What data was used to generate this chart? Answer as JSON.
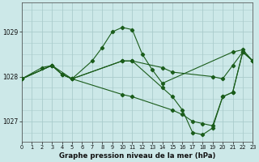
{
  "title": "Graphe pression niveau de la mer (hPa)",
  "bg_color": "#cce8e8",
  "grid_color": "#aacccc",
  "line_color": "#1a5c1a",
  "xlim": [
    0,
    23
  ],
  "ylim": [
    1026.55,
    1029.65
  ],
  "yticks": [
    1027,
    1028,
    1029
  ],
  "xticks": [
    0,
    1,
    2,
    3,
    4,
    5,
    6,
    7,
    8,
    9,
    10,
    11,
    12,
    13,
    14,
    15,
    16,
    17,
    18,
    19,
    20,
    21,
    22,
    23
  ],
  "series": [
    {
      "x": [
        0,
        2,
        3,
        5,
        7,
        8,
        9,
        10,
        11,
        12,
        13,
        14,
        21,
        22,
        23
      ],
      "y": [
        1027.95,
        1028.2,
        1028.25,
        1027.95,
        1028.35,
        1028.65,
        1029.0,
        1029.1,
        1029.05,
        1028.5,
        1028.15,
        1027.85,
        1028.55,
        1028.6,
        1028.35
      ]
    },
    {
      "x": [
        0,
        3,
        4,
        5,
        10,
        11,
        14,
        15,
        19,
        20,
        21,
        22,
        23
      ],
      "y": [
        1027.95,
        1028.25,
        1028.05,
        1027.95,
        1028.35,
        1028.35,
        1028.2,
        1028.1,
        1028.0,
        1027.95,
        1028.25,
        1028.55,
        1028.35
      ]
    },
    {
      "x": [
        0,
        3,
        4,
        5,
        10,
        11,
        14,
        15,
        16,
        17,
        18,
        19,
        20,
        21,
        22,
        23
      ],
      "y": [
        1027.95,
        1028.25,
        1028.05,
        1027.95,
        1028.35,
        1028.35,
        1027.75,
        1027.55,
        1027.25,
        1026.75,
        1026.7,
        1026.85,
        1027.55,
        1027.65,
        1028.55,
        1028.35
      ]
    },
    {
      "x": [
        0,
        3,
        4,
        5,
        10,
        11,
        15,
        16,
        17,
        18,
        19,
        20,
        21,
        22,
        23
      ],
      "y": [
        1027.95,
        1028.25,
        1028.05,
        1027.95,
        1027.6,
        1027.55,
        1027.25,
        1027.15,
        1027.0,
        1026.95,
        1026.9,
        1027.55,
        1027.65,
        1028.55,
        1028.35
      ]
    }
  ]
}
